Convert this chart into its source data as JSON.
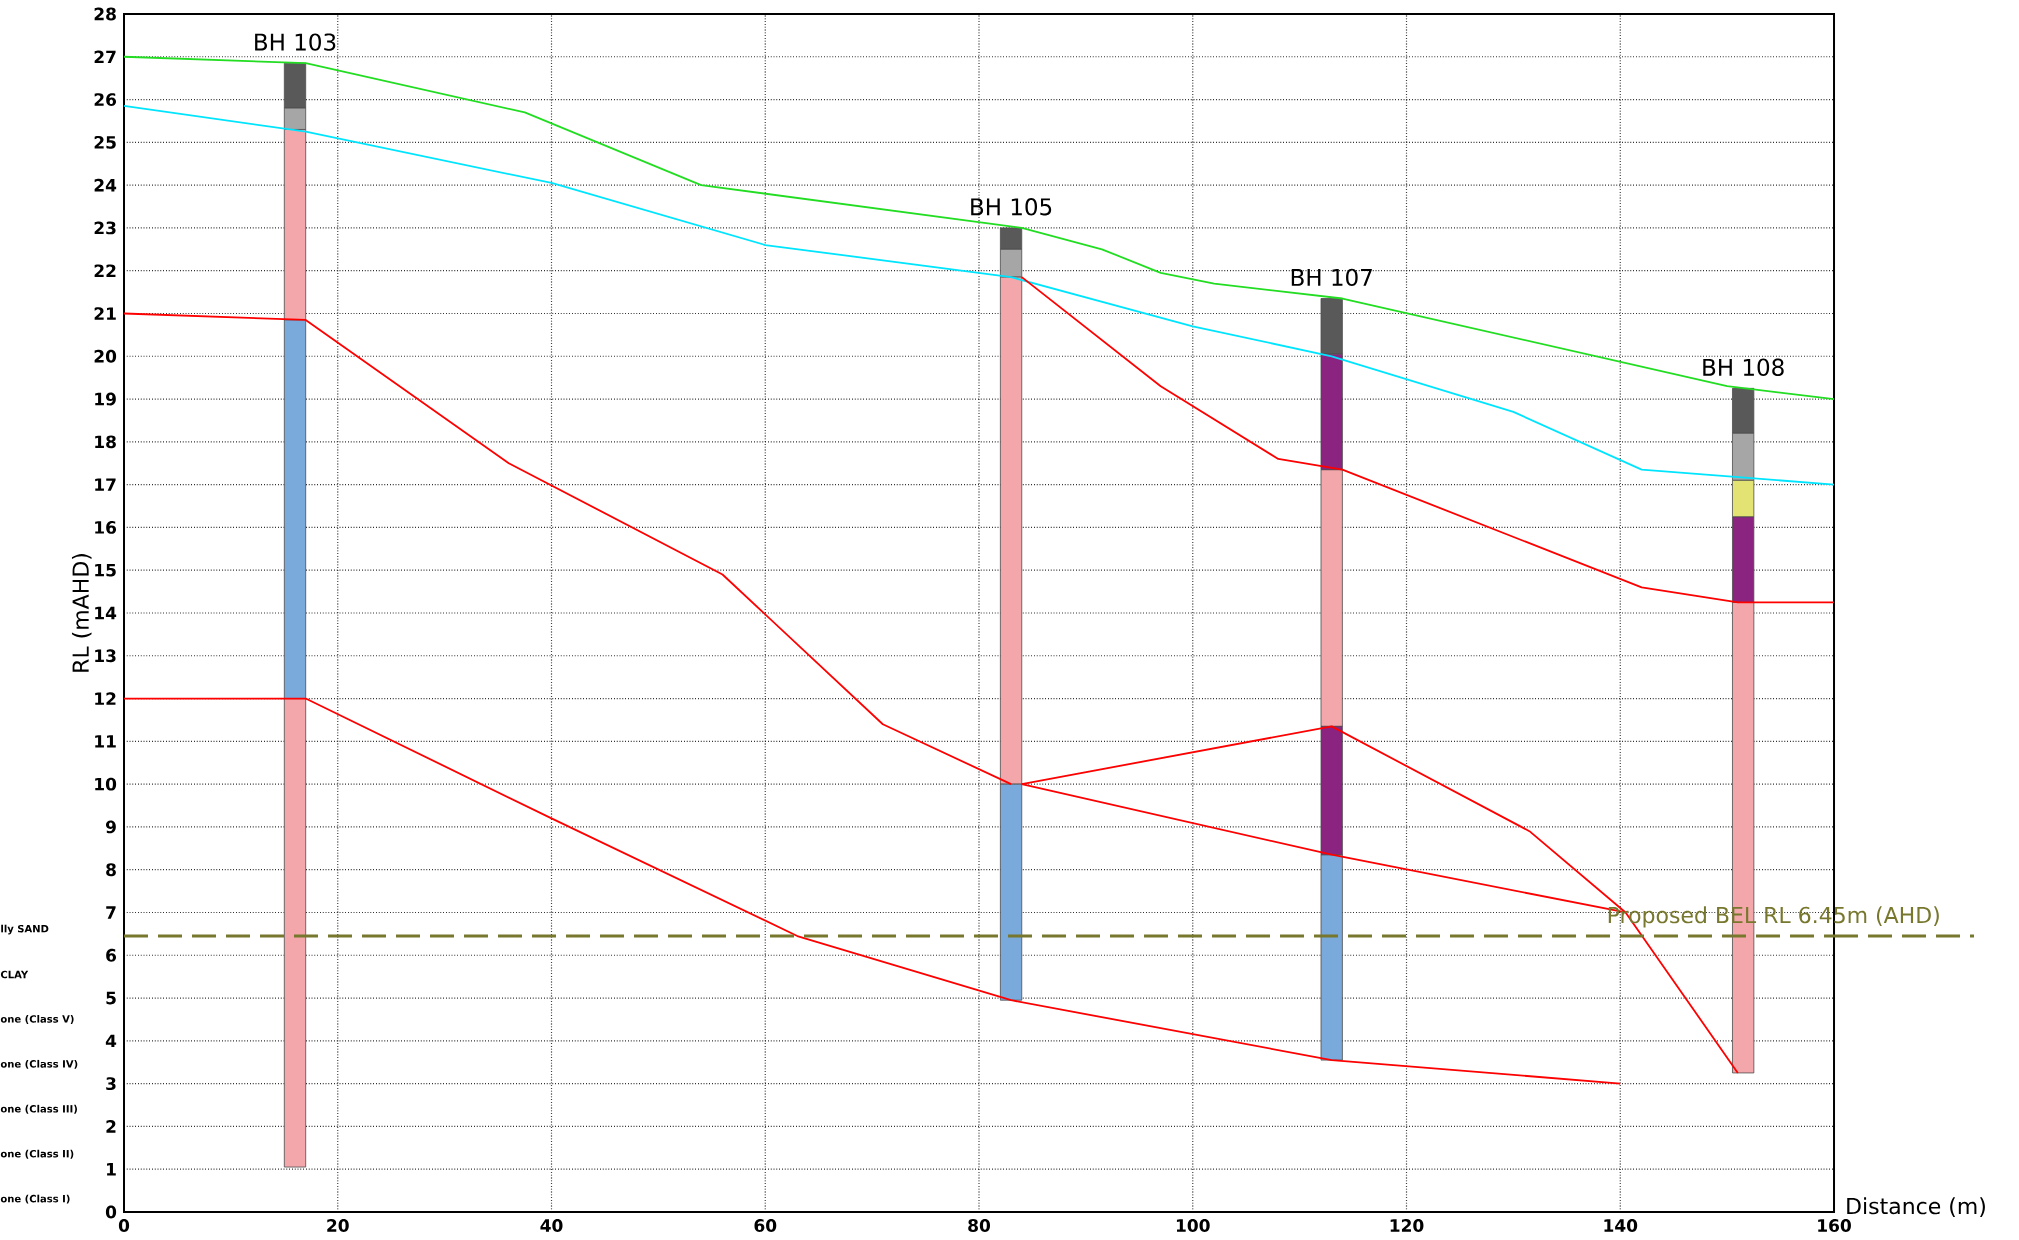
{
  "chart_data": {
    "type": "line",
    "xlabel": "Distance (m)",
    "ylabel": "RL (mAHD)",
    "xlim": [
      0,
      160
    ],
    "ylim": [
      0,
      28
    ],
    "xticks": [
      0,
      20,
      40,
      60,
      80,
      100,
      120,
      140,
      160
    ],
    "yticks": [
      0,
      1,
      2,
      3,
      4,
      5,
      6,
      7,
      8,
      9,
      10,
      11,
      12,
      13,
      14,
      15,
      16,
      17,
      18,
      19,
      20,
      21,
      22,
      23,
      24,
      25,
      26,
      27,
      28
    ],
    "grid": true,
    "series": [
      {
        "color": "#22dd22",
        "x": [
          0,
          17,
          37.5,
          54,
          84,
          91.5,
          97,
          102,
          114,
          150,
          160
        ],
        "values": [
          27,
          26.85,
          25.7,
          24,
          23,
          22.5,
          21.95,
          21.7,
          21.35,
          19.3,
          19
        ]
      },
      {
        "color": "#00e5ff",
        "x": [
          0,
          17,
          40,
          60,
          83,
          100,
          113,
          130,
          142,
          160
        ],
        "values": [
          25.85,
          25.25,
          24.05,
          22.6,
          21.85,
          20.7,
          20,
          18.7,
          17.35,
          17
        ]
      },
      {
        "color": "#ff0000",
        "x": [
          0,
          17,
          36,
          56,
          71,
          83
        ],
        "values": [
          21,
          20.85,
          17.5,
          14.9,
          11.4,
          10
        ]
      },
      {
        "color": "#ff0000",
        "x": [
          0,
          17,
          40,
          63,
          83,
          113,
          140
        ],
        "values": [
          12,
          12,
          9.2,
          6.45,
          4.95,
          3.55,
          3
        ]
      },
      {
        "color": "#ff0000",
        "x": [
          84,
          97,
          108,
          114,
          142,
          151,
          160
        ],
        "values": [
          21.85,
          19.3,
          17.6,
          17.35,
          14.6,
          14.25,
          14.25
        ]
      },
      {
        "color": "#ff0000",
        "x": [
          84,
          113,
          131.5,
          140.5,
          151
        ],
        "values": [
          10,
          11.35,
          8.9,
          7,
          3.25
        ]
      },
      {
        "color": "#ff0000",
        "x": [
          84,
          113,
          140.5
        ],
        "values": [
          10,
          8.35,
          7
        ]
      },
      {
        "type": "bar",
        "color": "#595959",
        "x": [
          16,
          83,
          113,
          151.5
        ],
        "base": [
          25.8,
          22.5,
          20.05,
          18.2
        ],
        "values": [
          1.05,
          0.5,
          1.3,
          1.05
        ]
      },
      {
        "type": "bar",
        "color": "#a6a6a6",
        "x": [
          16,
          83,
          151.5
        ],
        "base": [
          25.3,
          21.85,
          17.1
        ],
        "values": [
          0.5,
          0.65,
          1.1
        ]
      },
      {
        "type": "bar",
        "color": "#f4a7ab",
        "x": [
          16,
          83,
          113,
          151.5
        ],
        "base": [
          20.85,
          10,
          11.35,
          3.25
        ],
        "values": [
          4.45,
          11.85,
          6,
          11
        ]
      },
      {
        "type": "bar",
        "color": "#f4a7ab",
        "x": [
          16
        ],
        "base": [
          1.05
        ],
        "values": [
          10.95
        ]
      },
      {
        "type": "bar",
        "color": "#7aa9dc",
        "x": [
          16,
          83,
          113
        ],
        "base": [
          12,
          4.95,
          3.55
        ],
        "values": [
          8.85,
          5.05,
          4.8
        ]
      },
      {
        "type": "bar",
        "color": "#8b2381",
        "x": [
          113,
          151.5
        ],
        "base": [
          17.35,
          14.25
        ],
        "values": [
          2.7,
          2
        ]
      },
      {
        "type": "bar",
        "color": "#8b2381",
        "x": [
          113
        ],
        "base": [
          8.35
        ],
        "values": [
          3
        ]
      },
      {
        "type": "bar",
        "color": "#e3e374",
        "x": [
          151.5
        ],
        "base": [
          16.25
        ],
        "values": [
          0.85
        ]
      }
    ],
    "ref_lines": [
      {
        "axis": "y",
        "value": 6.45,
        "label": "Proposed BEL RL 6.45m (AHD)",
        "color": "#77772e",
        "line_style": "dashed"
      }
    ],
    "annotations": [
      {
        "text": "BH 103",
        "x": 16,
        "y": 26.85
      },
      {
        "text": "BH 105",
        "x": 83,
        "y": 23
      },
      {
        "text": "BH 107",
        "x": 113,
        "y": 21.35
      },
      {
        "text": "BH 108",
        "x": 151.5,
        "y": 19.25
      },
      "lly SAND",
      "CLAY",
      "one (Class V)",
      "one (Class IV)",
      "one (Class III)",
      "one (Class II)",
      "one (Class I)"
    ]
  }
}
